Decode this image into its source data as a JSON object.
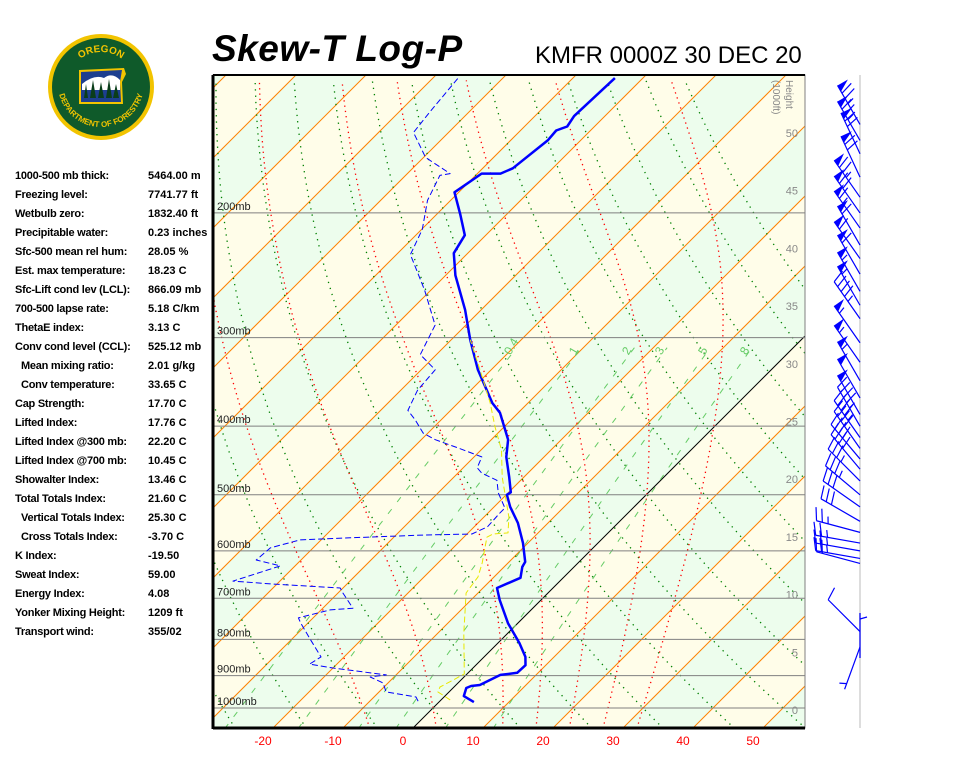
{
  "header": {
    "title": "Skew-T Log-P",
    "station_time": "KMFR 0000Z 30 DEC 20"
  },
  "logo": {
    "top_text": "OREGON",
    "bottom_text": "DEPARTMENT OF FORESTRY",
    "colors": {
      "ring": "#f2c400",
      "field": "#0f5a2a",
      "sky": "#1d3f8f"
    }
  },
  "stats": [
    {
      "label": "1000-500 mb thick:",
      "value": "5464.00 m",
      "indent": false
    },
    {
      "label": "Freezing level:",
      "value": "7741.77 ft",
      "indent": false
    },
    {
      "label": "Wetbulb zero:",
      "value": "1832.40 ft",
      "indent": false
    },
    {
      "label": "Precipitable water:",
      "value": "0.23 inches",
      "indent": false
    },
    {
      "label": "Sfc-500 mean rel hum:",
      "value": "28.05 %",
      "indent": false
    },
    {
      "label": "Est. max temperature:",
      "value": "18.23 C",
      "indent": false
    },
    {
      "label": "Sfc-Lift cond lev (LCL):",
      "value": "866.09 mb",
      "indent": false
    },
    {
      "label": "700-500 lapse rate:",
      "value": "5.18 C/km",
      "indent": false
    },
    {
      "label": "ThetaE index:",
      "value": "3.13 C",
      "indent": false
    },
    {
      "label": "Conv cond level (CCL):",
      "value": "525.12 mb",
      "indent": false
    },
    {
      "label": "Mean mixing ratio:",
      "value": "2.01 g/kg",
      "indent": true
    },
    {
      "label": "Conv temperature:",
      "value": "33.65 C",
      "indent": true
    },
    {
      "label": "Cap Strength:",
      "value": "17.70 C",
      "indent": false
    },
    {
      "label": "Lifted Index:",
      "value": "17.76 C",
      "indent": false
    },
    {
      "label": "Lifted Index @300 mb:",
      "value": "22.20 C",
      "indent": false
    },
    {
      "label": "Lifted Index @700 mb:",
      "value": "10.45 C",
      "indent": false
    },
    {
      "label": "Showalter Index:",
      "value": "13.46 C",
      "indent": false
    },
    {
      "label": "Total Totals Index:",
      "value": "21.60 C",
      "indent": false
    },
    {
      "label": "Vertical Totals Index:",
      "value": "25.30 C",
      "indent": true
    },
    {
      "label": "Cross Totals Index:",
      "value": "-3.70 C",
      "indent": true
    },
    {
      "label": "K Index:",
      "value": "-19.50",
      "indent": false
    },
    {
      "label": "Sweat Index:",
      "value": "59.00",
      "indent": false
    },
    {
      "label": "Energy Index:",
      "value": "4.08",
      "indent": false
    },
    {
      "label": "Yonker Mixing Height:",
      "value": "1209 ft",
      "indent": false
    },
    {
      "label": "Transport wind:",
      "value": "355/02",
      "indent": false
    }
  ],
  "chart_data": {
    "type": "line",
    "title": "Skew-T Log-P",
    "x_axis": {
      "unit": "C",
      "ticks": [
        -20,
        -10,
        0,
        10,
        20,
        30,
        40,
        50
      ],
      "tick_labels": [
        "-20",
        "-10",
        "0",
        "10",
        "20",
        "30",
        "40",
        "50"
      ]
    },
    "y_axis": {
      "scale": "log",
      "range_mb": [
        1067,
        128
      ],
      "levels": [
        1000,
        900,
        800,
        700,
        600,
        500,
        400,
        300,
        200
      ],
      "level_labels": [
        "1000mb",
        "900mb",
        "800mb",
        "700mb",
        "600mb",
        "500mb",
        "400mb",
        "300mb",
        "200mb"
      ]
    },
    "height_axis": {
      "label": "Height (1000ft)",
      "ticks": [
        0,
        5,
        10,
        15,
        20,
        25,
        30,
        35,
        40,
        45,
        50
      ],
      "tick_labels": [
        "0",
        "5",
        "10",
        "15",
        "20",
        "25",
        "30",
        "35",
        "40",
        "45",
        "50"
      ]
    },
    "isotherm_step_c": 10,
    "highlight_isotherm_c": 0,
    "dry_adiabats_theta_c": [
      -40,
      -30,
      -20,
      -10,
      0,
      10,
      20,
      30,
      40,
      50,
      60,
      70,
      80,
      90,
      100,
      110,
      120
    ],
    "moist_adiabats_t1000_c": [
      -10,
      0,
      10,
      15,
      20,
      25,
      30
    ],
    "mixing_ratio_lines_gkg": [
      0.4,
      1,
      2,
      3,
      5,
      8
    ],
    "mixing_ratio_labels": [
      "0.4",
      "1",
      "2",
      "3",
      "5",
      "8"
    ],
    "colors": {
      "temperature": "#0000ff",
      "dewpoint": "#0000ff",
      "wetbulb": "#e8e800",
      "isotherm": "#ff8000",
      "zero_isotherm": "#000000",
      "dry_adiabat": "#008000",
      "moist_adiabat": "#ff0000",
      "mixing_ratio": "#66cc66",
      "band_a": "#fffde9",
      "band_b": "#edfded",
      "axis_labels": "#ff0000"
    },
    "series": [
      {
        "style": "solid-bold",
        "color": "#0000ff",
        "points": [
          [
            981,
            5.0
          ],
          [
            962,
            2.7
          ],
          [
            937,
            1.9
          ],
          [
            931,
            2.3
          ],
          [
            928,
            3.4
          ],
          [
            898,
            4.9
          ],
          [
            892,
            7.0
          ],
          [
            870,
            7.1
          ],
          [
            847,
            5.9
          ],
          [
            810,
            3.1
          ],
          [
            759,
            -1.4
          ],
          [
            704,
            -5.9
          ],
          [
            677,
            -8.0
          ],
          [
            655,
            -6.1
          ],
          [
            632,
            -7.4
          ],
          [
            622,
            -7.7
          ],
          [
            585,
            -10.7
          ],
          [
            548,
            -14.3
          ],
          [
            520,
            -17.7
          ],
          [
            500,
            -19.9
          ],
          [
            496,
            -19.7
          ],
          [
            472,
            -22.1
          ],
          [
            442,
            -25.4
          ],
          [
            418,
            -27.6
          ],
          [
            405,
            -29.4
          ],
          [
            383,
            -32.6
          ],
          [
            371,
            -35.1
          ],
          [
            356,
            -37.7
          ],
          [
            333,
            -41.9
          ],
          [
            302,
            -47.3
          ],
          [
            274,
            -52.3
          ],
          [
            245,
            -58.6
          ],
          [
            228,
            -62.0
          ],
          [
            215,
            -63.0
          ],
          [
            201,
            -66.6
          ],
          [
            187,
            -70.6
          ],
          [
            176,
            -69.4
          ],
          [
            176,
            -66.7
          ],
          [
            173,
            -65.7
          ],
          [
            158,
            -64.7
          ],
          [
            153,
            -64.9
          ],
          [
            151,
            -63.9
          ],
          [
            146,
            -64.4
          ],
          [
            129,
            -64.0
          ]
        ]
      },
      {
        "style": "dashed",
        "color": "#0000ff",
        "points": [
          [
            978,
            -3.1
          ],
          [
            965,
            -4.0
          ],
          [
            949,
            -9.0
          ],
          [
            922,
            -10.7
          ],
          [
            904,
            -13.4
          ],
          [
            898,
            -11.4
          ],
          [
            878,
            -20.0
          ],
          [
            867,
            -23.9
          ],
          [
            847,
            -23.3
          ],
          [
            797,
            -27.6
          ],
          [
            759,
            -31.0
          ],
          [
            746,
            -32.1
          ],
          [
            739,
            -30.9
          ],
          [
            727,
            -28.7
          ],
          [
            723,
            -25.7
          ],
          [
            688,
            -29.3
          ],
          [
            677,
            -30.4
          ],
          [
            668,
            -40.9
          ],
          [
            662,
            -46.7
          ],
          [
            630,
            -42.1
          ],
          [
            618,
            -46.4
          ],
          [
            594,
            -46.1
          ],
          [
            579,
            -43.0
          ],
          [
            575,
            -36.1
          ],
          [
            570,
            -26.3
          ],
          [
            568,
            -19.3
          ],
          [
            555,
            -18.1
          ],
          [
            531,
            -18.3
          ],
          [
            522,
            -18.3
          ],
          [
            497,
            -21.4
          ],
          [
            477,
            -23.4
          ],
          [
            466,
            -26.6
          ],
          [
            458,
            -28.0
          ],
          [
            442,
            -28.9
          ],
          [
            429,
            -33.7
          ],
          [
            418,
            -38.0
          ],
          [
            409,
            -40.7
          ],
          [
            392,
            -43.7
          ],
          [
            380,
            -46.1
          ],
          [
            356,
            -47.6
          ],
          [
            333,
            -48.0
          ],
          [
            317,
            -52.3
          ],
          [
            288,
            -54.4
          ],
          [
            257,
            -60.9
          ],
          [
            229,
            -68.0
          ],
          [
            211,
            -69.9
          ],
          [
            192,
            -73.3
          ],
          [
            177,
            -75.1
          ],
          [
            176,
            -73.9
          ],
          [
            167,
            -79.7
          ],
          [
            154,
            -85.0
          ],
          [
            144,
            -85.6
          ],
          [
            129,
            -86.4
          ]
        ]
      },
      {
        "style": "dashed",
        "color": "#e8e800",
        "points": [
          [
            974,
            1.3
          ],
          [
            949,
            -1.6
          ],
          [
            934,
            -2.0
          ],
          [
            913,
            -1.1
          ],
          [
            895,
            -0.4
          ],
          [
            784,
            -6.3
          ],
          [
            688,
            -11.7
          ],
          [
            653,
            -12.3
          ],
          [
            624,
            -13.7
          ],
          [
            574,
            -16.7
          ],
          [
            568,
            -16.3
          ],
          [
            566,
            -14.3
          ],
          [
            538,
            -16.4
          ],
          [
            472,
            -23.1
          ],
          [
            432,
            -27.1
          ],
          [
            401,
            -31.3
          ],
          [
            371,
            -35.4
          ],
          [
            333,
            -41.6
          ],
          [
            302,
            -47.3
          ]
        ]
      }
    ],
    "winds": {
      "units": "kt",
      "color": "#0000ff",
      "barbs": [
        [
          150,
          330,
          75
        ],
        [
          158,
          330,
          75
        ],
        [
          165,
          335,
          70
        ],
        [
          178,
          335,
          70
        ],
        [
          190,
          325,
          75
        ],
        [
          200,
          325,
          70
        ],
        [
          210,
          325,
          65
        ],
        [
          222,
          330,
          60
        ],
        [
          232,
          325,
          60
        ],
        [
          244,
          330,
          60
        ],
        [
          258,
          330,
          55
        ],
        [
          270,
          330,
          55
        ],
        [
          282,
          325,
          45
        ],
        [
          305,
          325,
          55
        ],
        [
          325,
          325,
          55
        ],
        [
          345,
          330,
          55
        ],
        [
          365,
          330,
          50
        ],
        [
          385,
          330,
          50
        ],
        [
          400,
          330,
          45
        ],
        [
          415,
          325,
          45
        ],
        [
          430,
          325,
          40
        ],
        [
          445,
          320,
          40
        ],
        [
          460,
          320,
          40
        ],
        [
          478,
          315,
          35
        ],
        [
          500,
          310,
          35
        ],
        [
          520,
          305,
          30
        ],
        [
          545,
          300,
          30
        ],
        [
          565,
          285,
          25
        ],
        [
          585,
          280,
          25
        ],
        [
          600,
          280,
          25
        ],
        [
          615,
          280,
          25
        ],
        [
          625,
          285,
          20
        ],
        [
          780,
          315,
          10
        ],
        [
          820,
          200,
          5
        ],
        [
          850,
          0,
          5
        ]
      ]
    }
  }
}
